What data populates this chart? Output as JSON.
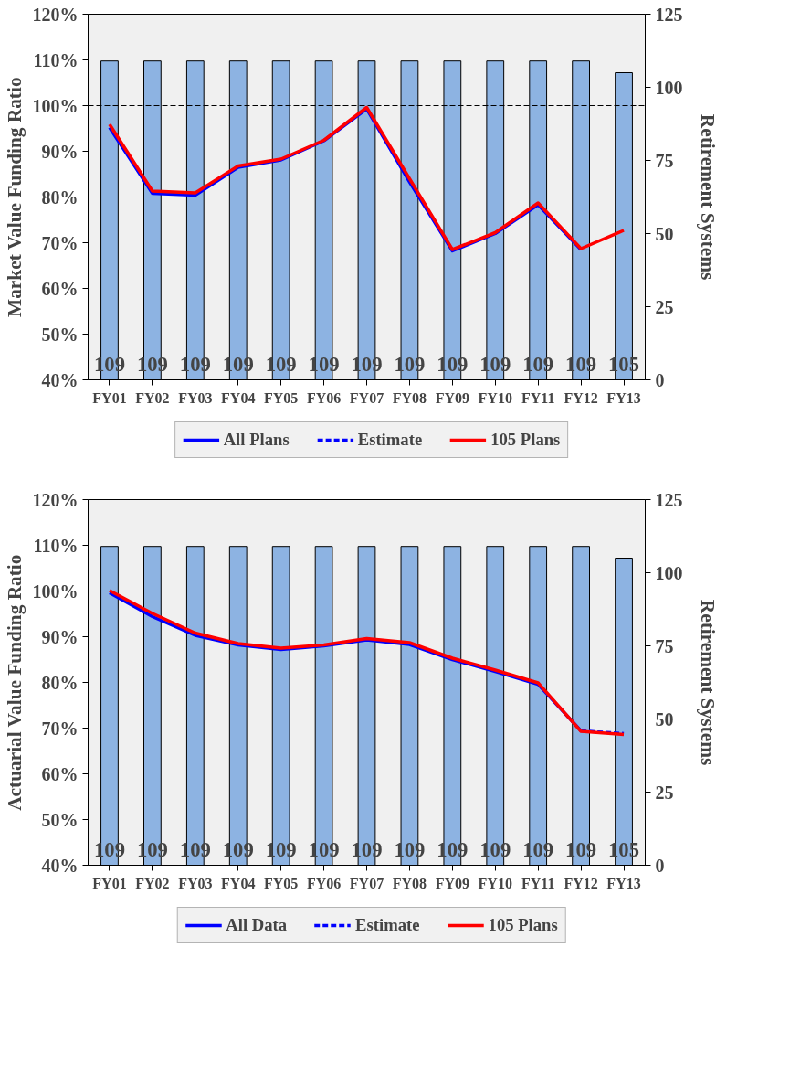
{
  "chart_data": [
    {
      "type": "line",
      "ylabel": "Market Value Funding Ratio",
      "y2label": "Retirement Systems",
      "categories": [
        "FY01",
        "FY02",
        "FY03",
        "FY04",
        "FY05",
        "FY06",
        "FY07",
        "FY08",
        "FY09",
        "FY10",
        "FY11",
        "FY12",
        "FY13"
      ],
      "ylim": [
        40,
        120
      ],
      "yticks": [
        {
          "value": 40,
          "label": "40%"
        },
        {
          "value": 50,
          "label": "50%"
        },
        {
          "value": 60,
          "label": "60%"
        },
        {
          "value": 70,
          "label": "70%"
        },
        {
          "value": 80,
          "label": "80%"
        },
        {
          "value": 90,
          "label": "90%"
        },
        {
          "value": 100,
          "label": "100%"
        },
        {
          "value": 110,
          "label": "110%"
        },
        {
          "value": 120,
          "label": "120%"
        }
      ],
      "y2lim": [
        0,
        125
      ],
      "y2ticks": [
        0,
        25,
        50,
        75,
        100,
        125
      ],
      "grid": false,
      "legend": "bottom",
      "ref_lines": [
        {
          "axis": "y",
          "value": 100,
          "color": "#000000",
          "line_style": "dashed"
        }
      ],
      "series": [
        {
          "type": "bar",
          "axis": "y2",
          "color": "#8db3e2",
          "data_labels": true,
          "values": [
            109,
            109,
            109,
            109,
            109,
            109,
            109,
            109,
            109,
            109,
            109,
            109,
            105
          ]
        },
        {
          "name": "All Plans",
          "color": "#0000ff",
          "line_style": "solid",
          "values": [
            95.2,
            80.8,
            80.4,
            86.5,
            88.1,
            92.3,
            99.3,
            83.3,
            68.2,
            72.0,
            78.3,
            68.5,
            null
          ]
        },
        {
          "name": "Estimate",
          "color": "#0000ff",
          "line_style": "dashed",
          "values": [
            null,
            null,
            null,
            null,
            null,
            null,
            null,
            null,
            null,
            null,
            null,
            null,
            null
          ]
        },
        {
          "name": "105 Plans",
          "color": "#ff0000",
          "line_style": "solid",
          "values": [
            95.9,
            81.3,
            80.9,
            86.8,
            88.3,
            92.4,
            99.6,
            84.0,
            68.5,
            72.2,
            78.7,
            68.7,
            72.7
          ]
        }
      ]
    },
    {
      "type": "line",
      "ylabel": "Actuarial Value Funding Ratio",
      "y2label": "Retirement Systems",
      "categories": [
        "FY01",
        "FY02",
        "FY03",
        "FY04",
        "FY05",
        "FY06",
        "FY07",
        "FY08",
        "FY09",
        "FY10",
        "FY11",
        "FY12",
        "FY13"
      ],
      "ylim": [
        40,
        120
      ],
      "yticks": [
        {
          "value": 40,
          "label": "40%"
        },
        {
          "value": 50,
          "label": "50%"
        },
        {
          "value": 60,
          "label": "60%"
        },
        {
          "value": 70,
          "label": "70%"
        },
        {
          "value": 80,
          "label": "80%"
        },
        {
          "value": 90,
          "label": "90%"
        },
        {
          "value": 100,
          "label": "100%"
        },
        {
          "value": 110,
          "label": "110%"
        },
        {
          "value": 120,
          "label": "120%"
        }
      ],
      "y2lim": [
        0,
        125
      ],
      "y2ticks": [
        0,
        25,
        50,
        75,
        100,
        125
      ],
      "grid": false,
      "legend": "bottom",
      "ref_lines": [
        {
          "axis": "y",
          "value": 100,
          "color": "#000000",
          "line_style": "dashed"
        }
      ],
      "series": [
        {
          "type": "bar",
          "axis": "y2",
          "color": "#8db3e2",
          "data_labels": true,
          "values": [
            109,
            109,
            109,
            109,
            109,
            109,
            109,
            109,
            109,
            109,
            109,
            109,
            105
          ]
        },
        {
          "name": "All Data",
          "color": "#0000ff",
          "line_style": "solid",
          "values": [
            99.6,
            94.4,
            90.3,
            88.2,
            87.2,
            88.0,
            89.3,
            88.3,
            85.0,
            82.4,
            79.6,
            69.4,
            null
          ]
        },
        {
          "name": "Estimate",
          "color": "#0000ff",
          "line_style": "dashed",
          "values": [
            null,
            null,
            null,
            null,
            null,
            null,
            null,
            null,
            null,
            null,
            null,
            69.4,
            68.8
          ]
        },
        {
          "name": "105 Plans",
          "color": "#ff0000",
          "line_style": "solid",
          "values": [
            100.1,
            95.1,
            90.8,
            88.5,
            87.5,
            88.2,
            89.6,
            88.7,
            85.3,
            82.7,
            79.9,
            69.3,
            68.6
          ]
        }
      ]
    }
  ]
}
